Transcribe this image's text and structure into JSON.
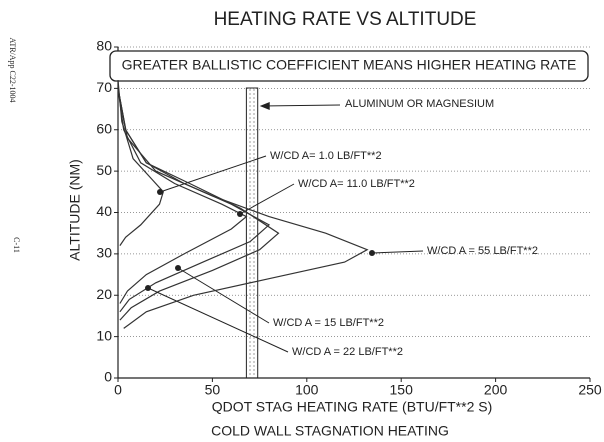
{
  "chart_data": {
    "type": "line",
    "title": "HEATING RATE VS ALTITUDE",
    "subtitle": "COLD WALL STAGNATION HEATING",
    "x_label": "QDOT STAG HEATING RATE (BTU/FT**2 S)",
    "y_label": "ALTITUDE (NM)",
    "box_note": "GREATER BALLISTIC COEFFICIENT MEANS HIGHER HEATING RATE",
    "band_label": "ALUMINUM OR MAGNESIUM",
    "band": [
      68,
      74
    ],
    "side_notes": [
      "ATR/App C22-1004",
      "C-11"
    ],
    "xlim": [
      0,
      250
    ],
    "ylim": [
      0,
      80
    ],
    "xticks": [
      0,
      50,
      100,
      150,
      200,
      250
    ],
    "yticks": [
      0,
      10,
      20,
      30,
      40,
      50,
      60,
      70,
      80
    ],
    "grid": true,
    "series": [
      {
        "name": "W/CD A= 1.0 LB/FT**2",
        "color": "#333333",
        "x": [
          0,
          2,
          8,
          18,
          24,
          22,
          12,
          4,
          1
        ],
        "values": [
          72,
          62,
          53,
          48,
          45,
          42,
          37,
          34,
          32
        ]
      },
      {
        "name": "W/CD A= 11.0 LB/FT**2",
        "color": "#333333",
        "x": [
          0,
          3,
          12,
          30,
          55,
          68,
          60,
          35,
          15,
          5,
          1
        ],
        "values": [
          70,
          60,
          52,
          47,
          42,
          39,
          36,
          30,
          25,
          21,
          18
        ]
      },
      {
        "name": "W/CD A = 15 LB/FT**2",
        "color": "#333333",
        "x": [
          0,
          4,
          15,
          35,
          60,
          80,
          70,
          45,
          20,
          6,
          1
        ],
        "values": [
          70,
          60,
          52,
          47,
          42,
          37,
          33,
          28,
          23,
          19,
          16
        ]
      },
      {
        "name": "W/CD A = 22 LB/FT**2",
        "color": "#333333",
        "x": [
          0,
          4,
          15,
          38,
          65,
          85,
          75,
          50,
          22,
          7,
          1
        ],
        "values": [
          70,
          60,
          52,
          47,
          41,
          35,
          31,
          26,
          21,
          17,
          14
        ]
      },
      {
        "name": "W/CD A = 55 LB/FT**2",
        "color": "#333333",
        "x": [
          0,
          5,
          20,
          50,
          80,
          110,
          132,
          120,
          80,
          40,
          15,
          3
        ],
        "values": [
          70,
          58,
          50,
          44,
          39,
          35,
          31,
          28,
          24,
          20,
          16,
          12
        ]
      }
    ]
  }
}
